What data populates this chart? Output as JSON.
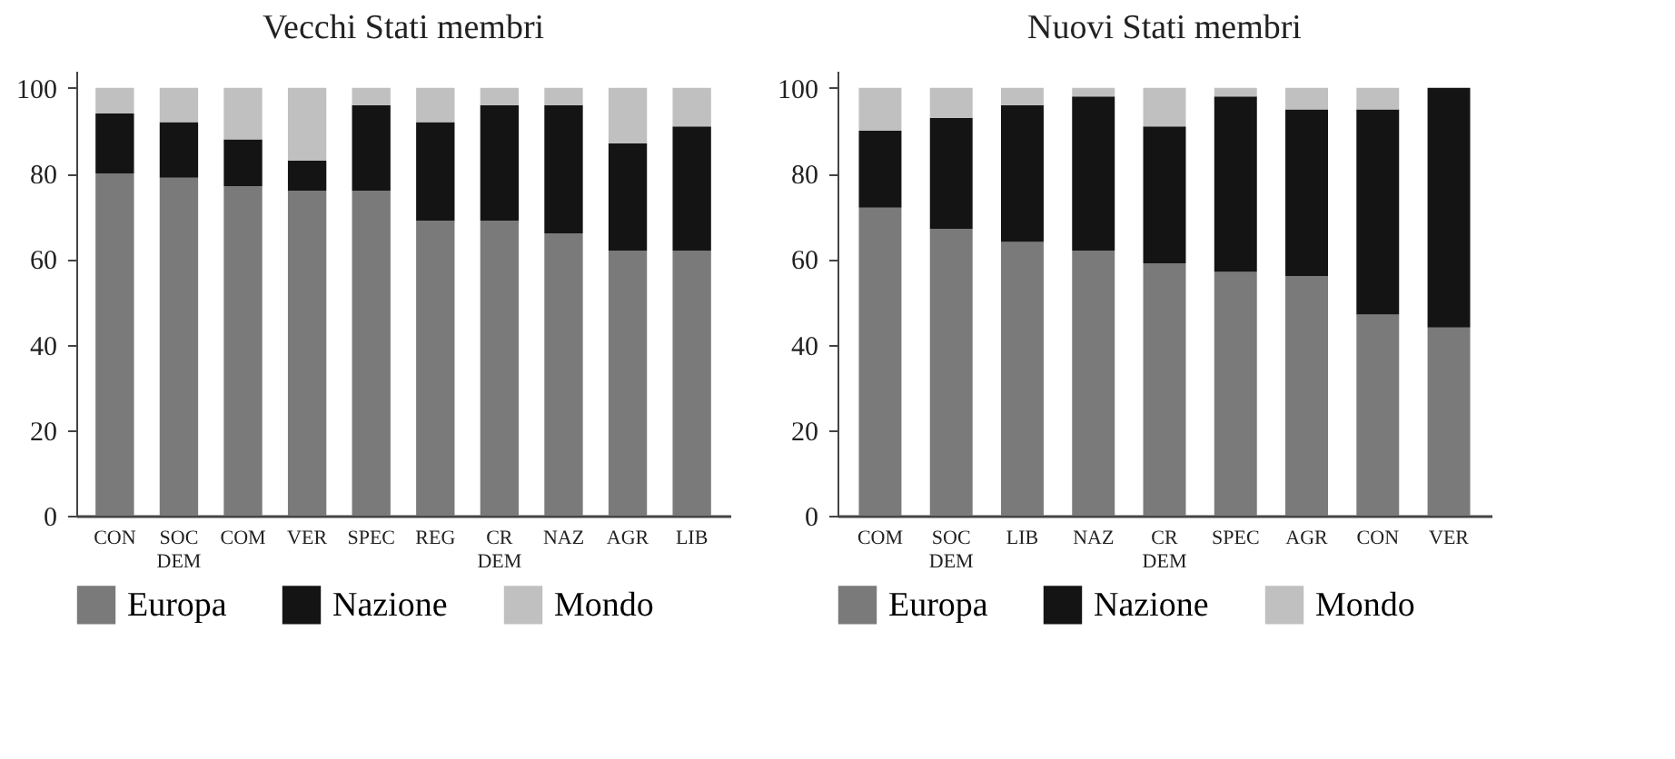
{
  "chart_data": [
    {
      "type": "bar",
      "title": "Vecchi Stati membri",
      "stacked": true,
      "legend": "bottom",
      "grid": false,
      "categories": [
        "CON",
        "SOC DEM",
        "COM",
        "VER",
        "SPEC",
        "REG",
        "CR DEM",
        "NAZ",
        "AGR",
        "LIB"
      ],
      "ylim": [
        0,
        104
      ],
      "yticks": [
        0,
        20,
        40,
        60,
        80,
        100
      ],
      "series": [
        {
          "name": "Europa",
          "color": "#7a7a7a",
          "values": [
            80,
            79,
            77,
            76,
            76,
            69,
            69,
            66,
            62,
            62
          ]
        },
        {
          "name": "Nazione",
          "color": "#141414",
          "values": [
            14,
            13,
            11,
            7,
            20,
            23,
            27,
            30,
            25,
            29
          ]
        },
        {
          "name": "Mondo",
          "color": "#c0c0c0",
          "values": [
            6,
            8,
            12,
            17,
            4,
            8,
            4,
            4,
            13,
            9
          ]
        }
      ]
    },
    {
      "type": "bar",
      "title": "Nuovi Stati membri",
      "stacked": true,
      "legend": "bottom",
      "grid": false,
      "categories": [
        "COM",
        "SOC DEM",
        "LIB",
        "NAZ",
        "CR DEM",
        "SPEC",
        "AGR",
        "CON",
        "VER"
      ],
      "ylim": [
        0,
        104
      ],
      "yticks": [
        0,
        20,
        40,
        60,
        80,
        100
      ],
      "series": [
        {
          "name": "Europa",
          "color": "#7a7a7a",
          "values": [
            72,
            67,
            64,
            62,
            59,
            57,
            56,
            47,
            44
          ]
        },
        {
          "name": "Nazione",
          "color": "#141414",
          "values": [
            18,
            26,
            32,
            36,
            32,
            41,
            39,
            48,
            56
          ]
        },
        {
          "name": "Mondo",
          "color": "#c0c0c0",
          "values": [
            10,
            7,
            4,
            2,
            9,
            2,
            5,
            5,
            0
          ]
        }
      ]
    }
  ]
}
